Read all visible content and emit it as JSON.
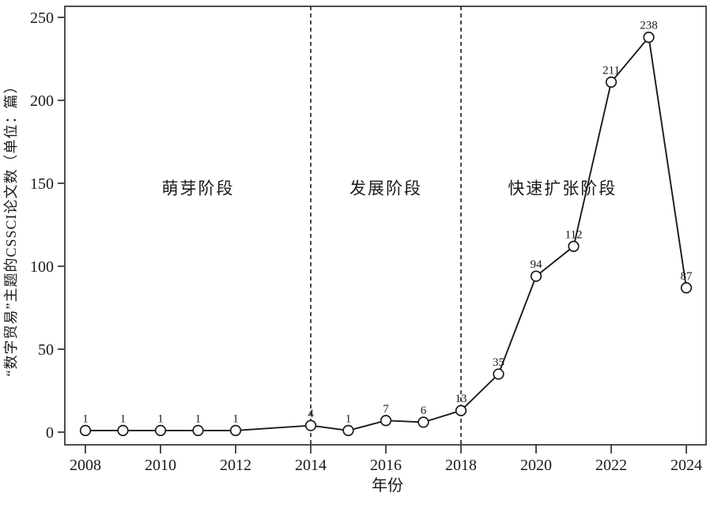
{
  "chart_data": {
    "type": "line",
    "title": "",
    "xlabel": "年份",
    "ylabel": "“数字贸易”主题的CSSCI论文数（单位：篇）",
    "x": [
      2008,
      2009,
      2010,
      2011,
      2012,
      2014,
      2015,
      2016,
      2017,
      2018,
      2019,
      2020,
      2021,
      2022,
      2023,
      2024
    ],
    "values": [
      1,
      1,
      1,
      1,
      1,
      4,
      1,
      7,
      6,
      13,
      35,
      94,
      112,
      211,
      238,
      87
    ],
    "point_labels": [
      "1",
      "1",
      "1",
      "1",
      "1",
      "4",
      "1",
      "7",
      "6",
      "13",
      "35",
      "94",
      "112",
      "211",
      "238",
      "87"
    ],
    "xticks": [
      2008,
      2010,
      2012,
      2014,
      2016,
      2018,
      2020,
      2022,
      2024
    ],
    "yticks": [
      0,
      50,
      100,
      150,
      200,
      250
    ],
    "xlim": [
      2007.45,
      2024.55
    ],
    "ylim": [
      0,
      250
    ],
    "grid": false,
    "legend": null,
    "marker": "open-circle",
    "phase_dividers": [
      2014,
      2018
    ],
    "annotations": [
      {
        "text": "萌芽阶段",
        "x_year": 2011.0,
        "y_value": 147
      },
      {
        "text": "发展阶段",
        "x_year": 2016.0,
        "y_value": 147
      },
      {
        "text": "快速扩张阶段",
        "x_year": 2020.7,
        "y_value": 147
      }
    ],
    "colors": {
      "line": "#1a1a1a",
      "marker_stroke": "#1a1a1a",
      "marker_fill": "#ffffff",
      "axis": "#3a3a3a",
      "divider": "#1a1a1a",
      "text": "#1a1a1a",
      "background": "#ffffff"
    }
  }
}
